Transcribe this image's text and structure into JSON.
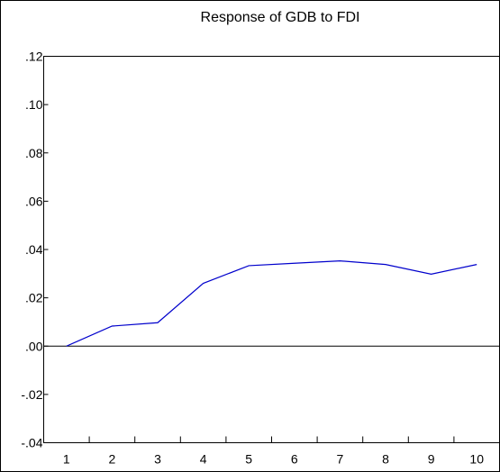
{
  "chart_data": {
    "type": "line",
    "title": "Response of GDB to FDI",
    "xlabel": "",
    "ylabel": "",
    "x": [
      1,
      2,
      3,
      4,
      5,
      6,
      7,
      8,
      9,
      10
    ],
    "x_tick_labels": [
      "1",
      "2",
      "3",
      "4",
      "5",
      "6",
      "7",
      "8",
      "9",
      "10"
    ],
    "y_tick_labels": [
      ".12",
      ".10",
      ".08",
      ".06",
      ".04",
      ".02",
      ".00",
      "-.02",
      "-.04"
    ],
    "y_ticks": [
      0.12,
      0.1,
      0.08,
      0.06,
      0.04,
      0.02,
      0.0,
      -0.02,
      -0.04
    ],
    "ylim": [
      -0.04,
      0.12
    ],
    "xlim": [
      0.5,
      10.5
    ],
    "grid": false,
    "zero_line": true,
    "series": [
      {
        "values": [
          0.0,
          0.0083,
          0.0097,
          0.026,
          0.0333,
          0.0343,
          0.0353,
          0.0338,
          0.0298,
          0.0338
        ],
        "color": "#0000cc"
      }
    ]
  }
}
